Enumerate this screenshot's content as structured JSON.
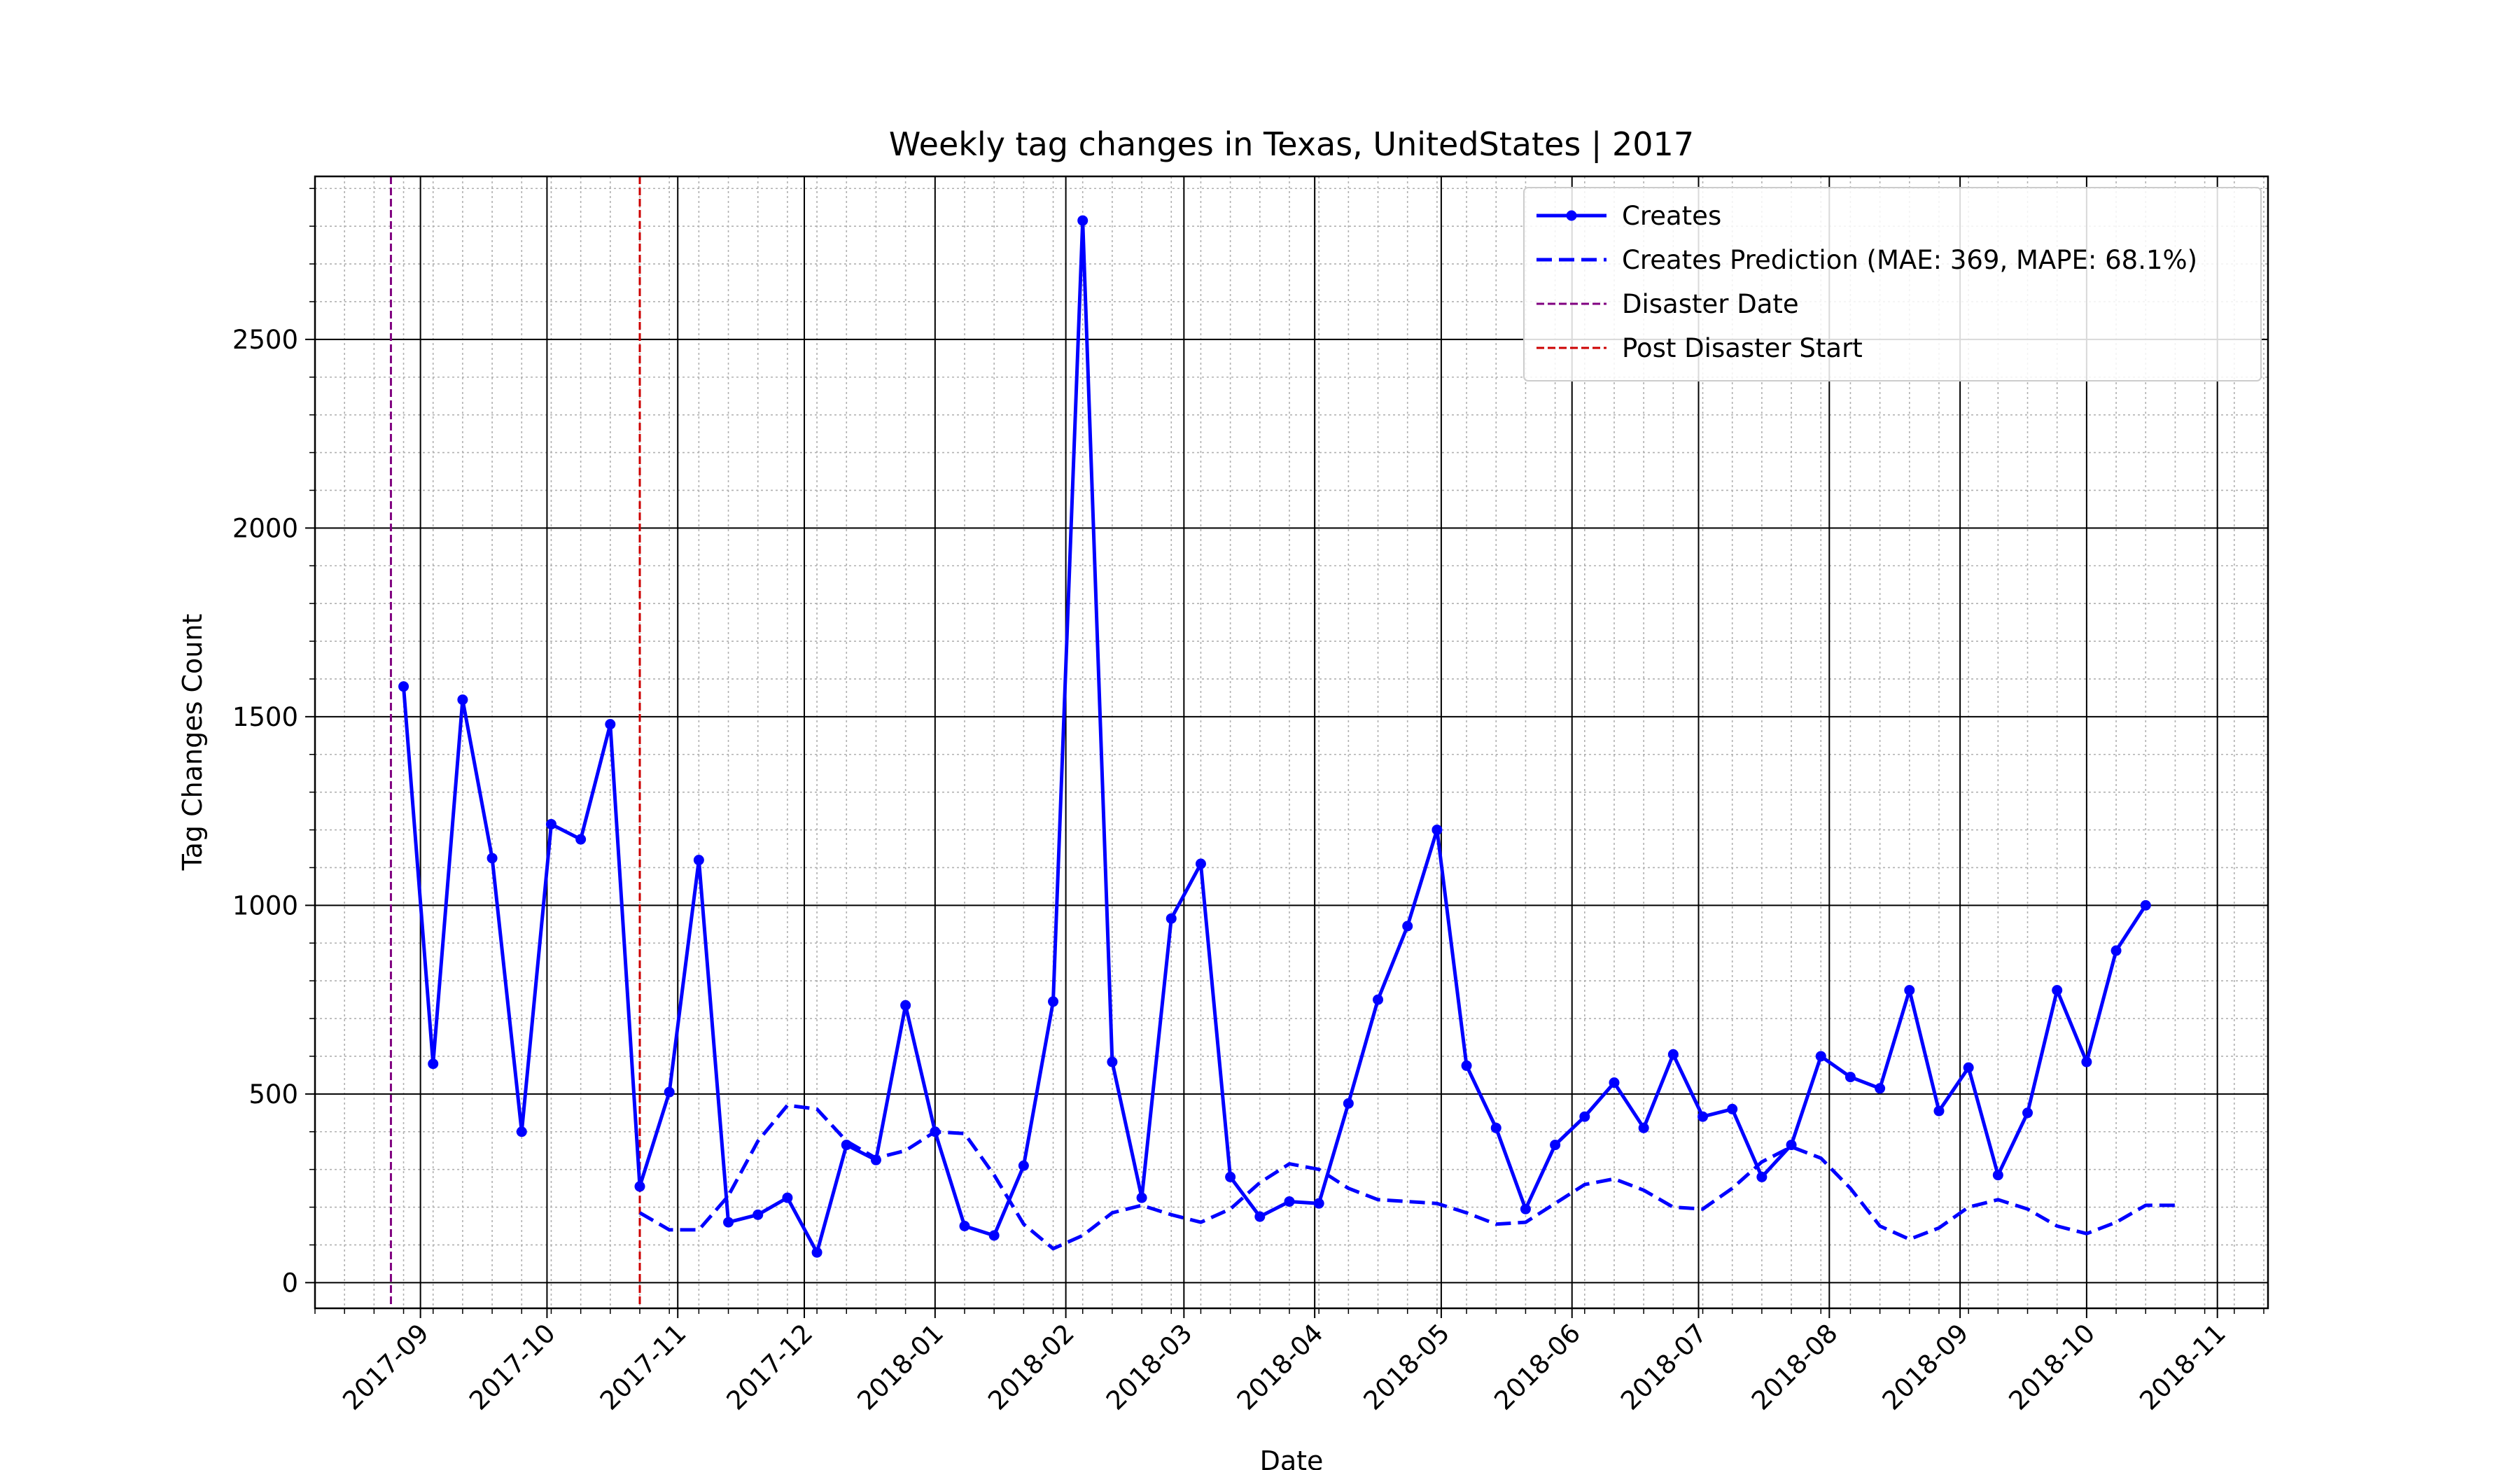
{
  "chart_data": {
    "type": "line",
    "title": "Weekly tag changes in Texas, UnitedStates | 2017",
    "xlabel": "Date",
    "ylabel": "Tag Changes Count",
    "xlim": [
      "2017-08-07",
      "2018-11-13"
    ],
    "ylim": [
      -68,
      2932
    ],
    "x_ticks": [
      "2017-09-01",
      "2017-10-01",
      "2017-11-01",
      "2017-12-01",
      "2018-01-01",
      "2018-02-01",
      "2018-03-01",
      "2018-04-01",
      "2018-05-01",
      "2018-06-01",
      "2018-07-01",
      "2018-08-01",
      "2018-09-01",
      "2018-10-01",
      "2018-11-01"
    ],
    "x_tick_labels": [
      "2017-09",
      "2017-10",
      "2017-11",
      "2017-12",
      "2018-01",
      "2018-02",
      "2018-03",
      "2018-04",
      "2018-05",
      "2018-06",
      "2018-07",
      "2018-08",
      "2018-09",
      "2018-10",
      "2018-11"
    ],
    "y_ticks": [
      0,
      500,
      1000,
      1500,
      2000,
      2500
    ],
    "y_tick_labels": [
      "0",
      "500",
      "1000",
      "1500",
      "2000",
      "2500"
    ],
    "grid": true,
    "legend_position": "upper right",
    "series": [
      {
        "name": "Creates",
        "color": "#0000ff",
        "style": "solid",
        "marker": "circle",
        "points": [
          [
            "2017-08-28",
            1580
          ],
          [
            "2017-09-04",
            580
          ],
          [
            "2017-09-11",
            1545
          ],
          [
            "2017-09-18",
            1125
          ],
          [
            "2017-09-25",
            400
          ],
          [
            "2017-10-02",
            1215
          ],
          [
            "2017-10-09",
            1175
          ],
          [
            "2017-10-16",
            1480
          ],
          [
            "2017-10-23",
            255
          ],
          [
            "2017-10-30",
            505
          ],
          [
            "2017-11-06",
            1120
          ],
          [
            "2017-11-13",
            160
          ],
          [
            "2017-11-20",
            180
          ],
          [
            "2017-11-27",
            225
          ],
          [
            "2017-12-04",
            80
          ],
          [
            "2017-12-11",
            365
          ],
          [
            "2017-12-18",
            325
          ],
          [
            "2017-12-25",
            735
          ],
          [
            "2018-01-01",
            400
          ],
          [
            "2018-01-08",
            150
          ],
          [
            "2018-01-15",
            125
          ],
          [
            "2018-01-22",
            310
          ],
          [
            "2018-01-29",
            745
          ],
          [
            "2018-02-05",
            2815
          ],
          [
            "2018-02-12",
            585
          ],
          [
            "2018-02-19",
            225
          ],
          [
            "2018-02-26",
            965
          ],
          [
            "2018-03-05",
            1110
          ],
          [
            "2018-03-12",
            280
          ],
          [
            "2018-03-19",
            175
          ],
          [
            "2018-03-26",
            215
          ],
          [
            "2018-04-02",
            210
          ],
          [
            "2018-04-09",
            475
          ],
          [
            "2018-04-16",
            750
          ],
          [
            "2018-04-23",
            945
          ],
          [
            "2018-04-30",
            1200
          ],
          [
            "2018-05-07",
            575
          ],
          [
            "2018-05-14",
            410
          ],
          [
            "2018-05-21",
            195
          ],
          [
            "2018-05-28",
            365
          ],
          [
            "2018-06-04",
            440
          ],
          [
            "2018-06-11",
            530
          ],
          [
            "2018-06-18",
            410
          ],
          [
            "2018-06-25",
            605
          ],
          [
            "2018-07-02",
            440
          ],
          [
            "2018-07-09",
            460
          ],
          [
            "2018-07-16",
            280
          ],
          [
            "2018-07-23",
            365
          ],
          [
            "2018-07-30",
            600
          ],
          [
            "2018-08-06",
            545
          ],
          [
            "2018-08-13",
            515
          ],
          [
            "2018-08-20",
            775
          ],
          [
            "2018-08-27",
            455
          ],
          [
            "2018-09-03",
            570
          ],
          [
            "2018-09-10",
            285
          ],
          [
            "2018-09-17",
            450
          ],
          [
            "2018-09-24",
            775
          ],
          [
            "2018-10-01",
            585
          ],
          [
            "2018-10-08",
            880
          ],
          [
            "2018-10-15",
            1000
          ]
        ]
      },
      {
        "name": "Creates Prediction (MAE: 369, MAPE: 68.1%)",
        "color": "#0000ff",
        "style": "dashed",
        "marker": "none",
        "points": [
          [
            "2017-10-23",
            185
          ],
          [
            "2017-10-30",
            140
          ],
          [
            "2017-11-06",
            140
          ],
          [
            "2017-11-13",
            230
          ],
          [
            "2017-11-20",
            375
          ],
          [
            "2017-11-27",
            470
          ],
          [
            "2017-12-04",
            460
          ],
          [
            "2017-12-11",
            375
          ],
          [
            "2017-12-18",
            330
          ],
          [
            "2017-12-25",
            350
          ],
          [
            "2018-01-01",
            400
          ],
          [
            "2018-01-08",
            395
          ],
          [
            "2018-01-15",
            285
          ],
          [
            "2018-01-22",
            155
          ],
          [
            "2018-01-29",
            90
          ],
          [
            "2018-02-05",
            125
          ],
          [
            "2018-02-12",
            185
          ],
          [
            "2018-02-19",
            205
          ],
          [
            "2018-02-26",
            180
          ],
          [
            "2018-03-05",
            160
          ],
          [
            "2018-03-12",
            195
          ],
          [
            "2018-03-19",
            265
          ],
          [
            "2018-03-26",
            315
          ],
          [
            "2018-04-02",
            300
          ],
          [
            "2018-04-09",
            250
          ],
          [
            "2018-04-16",
            220
          ],
          [
            "2018-04-23",
            215
          ],
          [
            "2018-04-30",
            210
          ],
          [
            "2018-05-07",
            185
          ],
          [
            "2018-05-14",
            155
          ],
          [
            "2018-05-21",
            160
          ],
          [
            "2018-05-28",
            210
          ],
          [
            "2018-06-04",
            260
          ],
          [
            "2018-06-11",
            275
          ],
          [
            "2018-06-18",
            245
          ],
          [
            "2018-06-25",
            200
          ],
          [
            "2018-07-02",
            195
          ],
          [
            "2018-07-09",
            250
          ],
          [
            "2018-07-16",
            320
          ],
          [
            "2018-07-23",
            360
          ],
          [
            "2018-07-30",
            330
          ],
          [
            "2018-08-06",
            250
          ],
          [
            "2018-08-13",
            150
          ],
          [
            "2018-08-20",
            115
          ],
          [
            "2018-08-27",
            145
          ],
          [
            "2018-09-03",
            200
          ],
          [
            "2018-09-10",
            220
          ],
          [
            "2018-09-17",
            195
          ],
          [
            "2018-09-24",
            150
          ],
          [
            "2018-10-01",
            130
          ],
          [
            "2018-10-08",
            160
          ],
          [
            "2018-10-15",
            205
          ],
          [
            "2018-10-22",
            205
          ]
        ]
      }
    ],
    "vlines": [
      {
        "name": "Disaster Date",
        "date": "2017-08-25",
        "color": "#800080",
        "style": "dashed"
      },
      {
        "name": "Post Disaster Start",
        "date": "2017-10-23",
        "color": "#cc0000",
        "style": "dashed"
      }
    ]
  }
}
